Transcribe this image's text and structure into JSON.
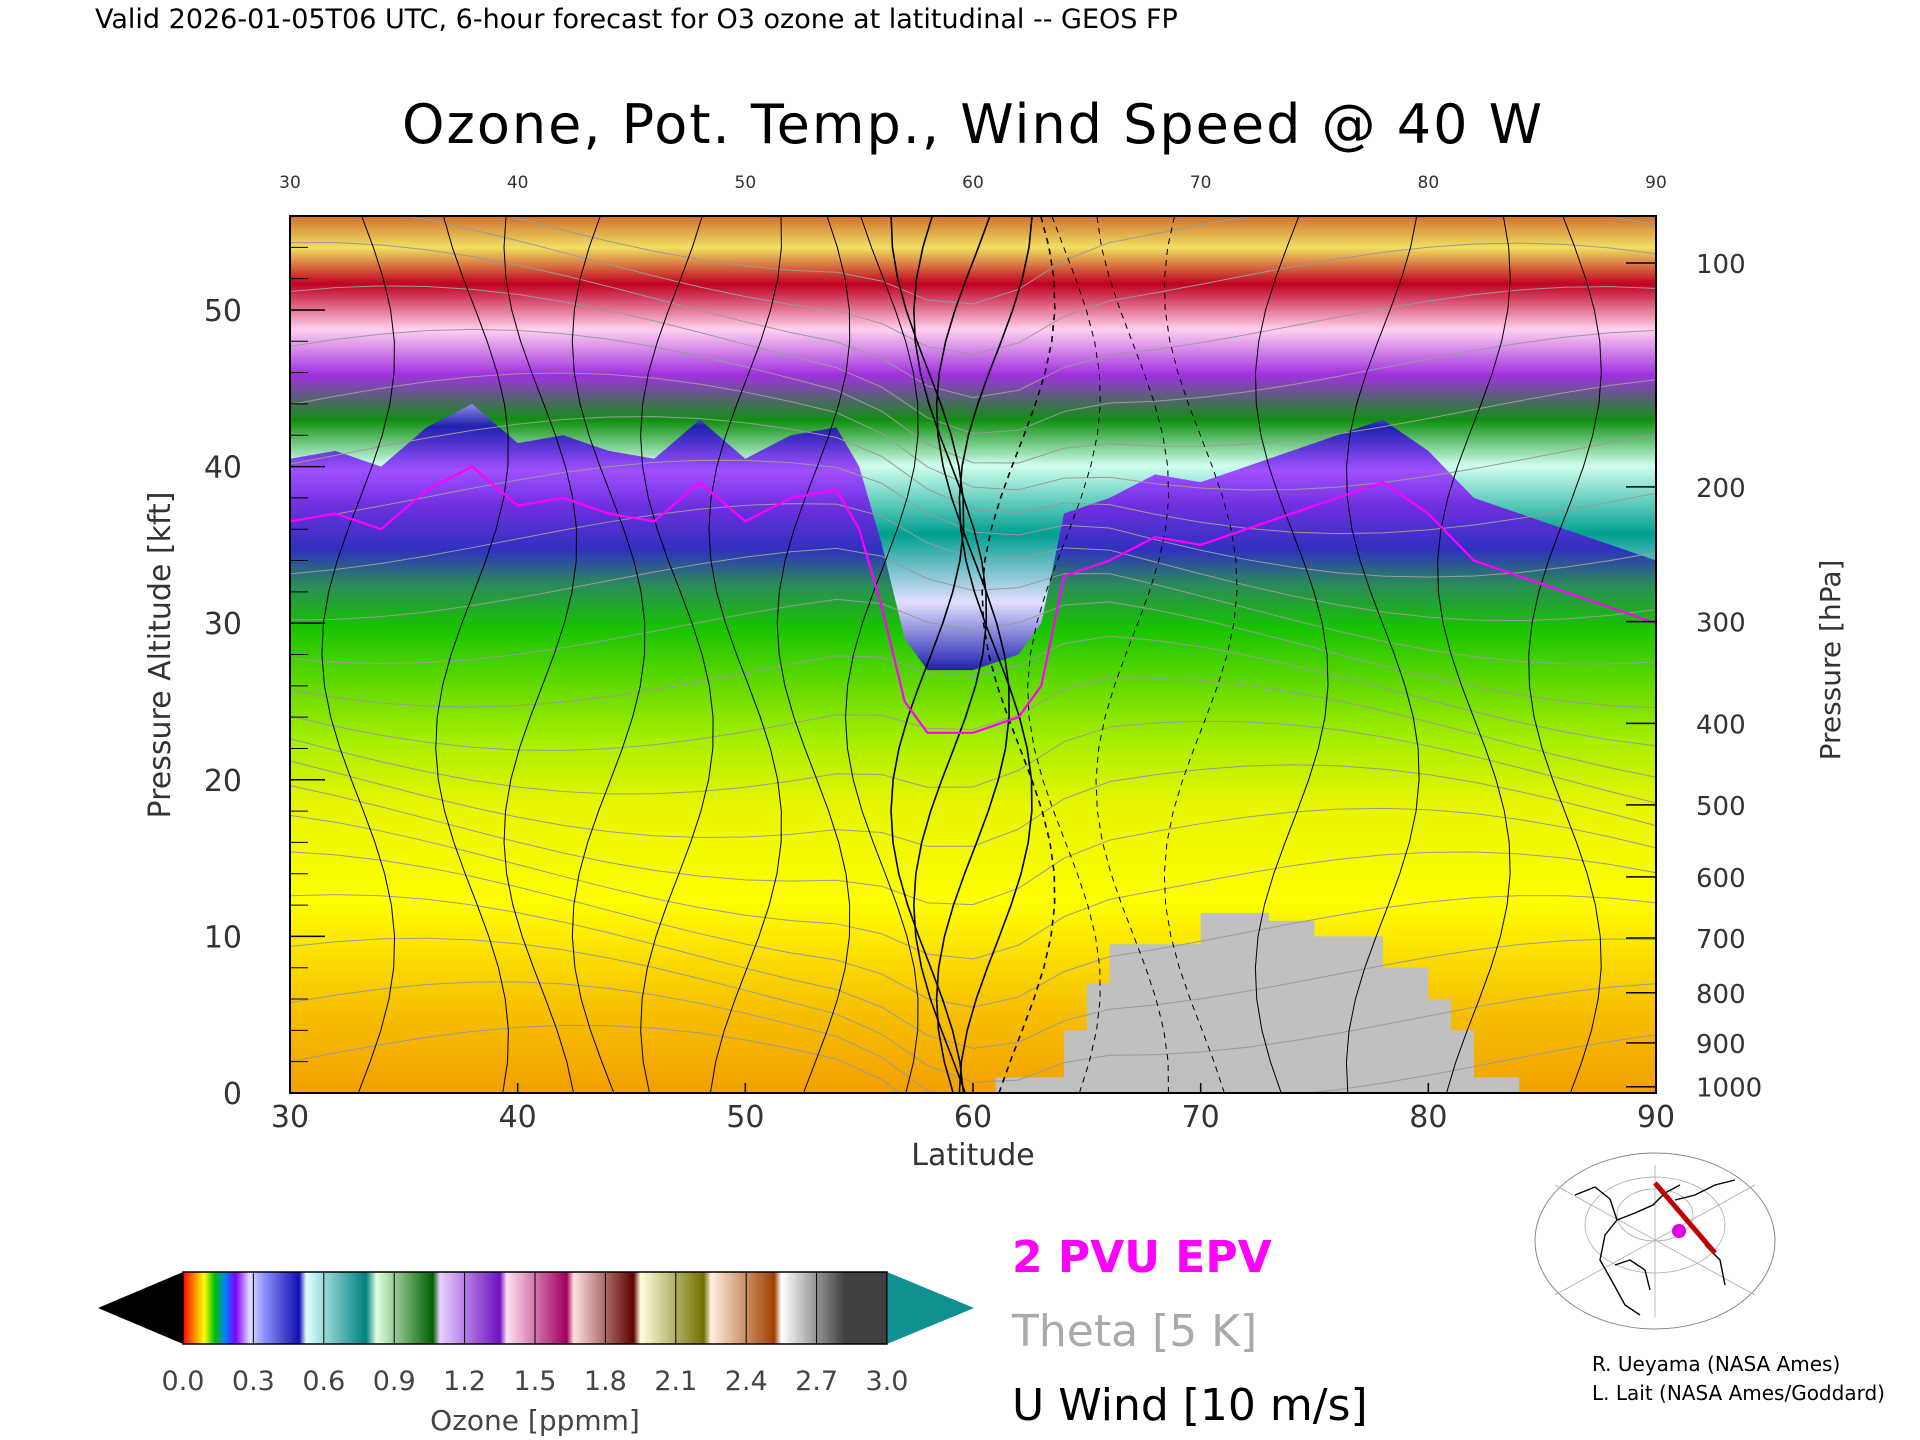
{
  "header": {
    "valid_line": "Valid 2026-01-05T06 UTC, 6-hour forecast for O3 ozone at latitudinal -- GEOS FP"
  },
  "chart_data": {
    "type": "heatmap",
    "title": "Ozone, Pot. Temp., Wind Speed @ 40 W",
    "xlabel": "Latitude",
    "ylabel_left": "Pressure Altitude [kft]",
    "ylabel_right": "Pressure [hPa]",
    "xlim": [
      30,
      90
    ],
    "ylim": [
      0,
      56
    ],
    "x_ticks": [
      30,
      40,
      50,
      60,
      70,
      80,
      90
    ],
    "x_ticks_top": [
      30,
      40,
      50,
      60,
      70,
      80,
      90
    ],
    "y_ticks_left": [
      0,
      10,
      20,
      30,
      40,
      50
    ],
    "y_ticks_right": [
      {
        "label": "100",
        "kft": 53.0
      },
      {
        "label": "200",
        "kft": 38.7
      },
      {
        "label": "300",
        "kft": 30.1
      },
      {
        "label": "400",
        "kft": 23.6
      },
      {
        "label": "500",
        "kft": 18.4
      },
      {
        "label": "600",
        "kft": 13.8
      },
      {
        "label": "700",
        "kft": 9.9
      },
      {
        "label": "800",
        "kft": 6.4
      },
      {
        "label": "900",
        "kft": 3.2
      },
      {
        "label": "1000",
        "kft": 0.4
      }
    ],
    "tropopause_2pvu_kft": [
      [
        30,
        36.5
      ],
      [
        32,
        37
      ],
      [
        34,
        36
      ],
      [
        36,
        38.5
      ],
      [
        38,
        40
      ],
      [
        40,
        37.5
      ],
      [
        42,
        38
      ],
      [
        44,
        37
      ],
      [
        46,
        36.5
      ],
      [
        48,
        39
      ],
      [
        50,
        36.5
      ],
      [
        52,
        38
      ],
      [
        54,
        38.5
      ],
      [
        55,
        36
      ],
      [
        56,
        31
      ],
      [
        57,
        25
      ],
      [
        58,
        23
      ],
      [
        60,
        23
      ],
      [
        62,
        24
      ],
      [
        63,
        26
      ],
      [
        64,
        33
      ],
      [
        66,
        34
      ],
      [
        68,
        35.5
      ],
      [
        70,
        35
      ],
      [
        72,
        36
      ],
      [
        74,
        37
      ],
      [
        76,
        38
      ],
      [
        78,
        39
      ],
      [
        80,
        37
      ],
      [
        82,
        34
      ],
      [
        84,
        33
      ],
      [
        86,
        32
      ],
      [
        88,
        31
      ],
      [
        90,
        30
      ]
    ],
    "dynamic_tropopause_label": "2 PVU EPV",
    "legend": {
      "entries": [
        {
          "label": "2 PVU EPV",
          "color": "#ff00ff"
        },
        {
          "label": "Theta [5 K]",
          "color": "#aaaaaa"
        },
        {
          "label": "U Wind [10 m/s]",
          "color": "#000000"
        }
      ]
    },
    "colorbar": {
      "label": "Ozone [ppmm]",
      "range": [
        0.0,
        3.0
      ],
      "tick_labels": [
        "0.0",
        "0.3",
        "0.6",
        "0.9",
        "1.2",
        "1.5",
        "1.8",
        "2.1",
        "2.4",
        "2.7",
        "3.0"
      ],
      "below_color": "#000000",
      "above_color": "#00a0a0"
    },
    "ozone_bands_kft": [
      {
        "ppmm": "2.4-3.0",
        "color": "#c05000"
      },
      {
        "ppmm": "0.0-0.1 sfc",
        "color": "#f5a300"
      }
    ]
  },
  "credits": {
    "line1": "R. Ueyama (NASA Ames)",
    "line2": "L. Lait (NASA Ames/Goddard)"
  },
  "map_inset": {
    "description_marker_color": "#e000e0",
    "track_color": "#c00000"
  }
}
